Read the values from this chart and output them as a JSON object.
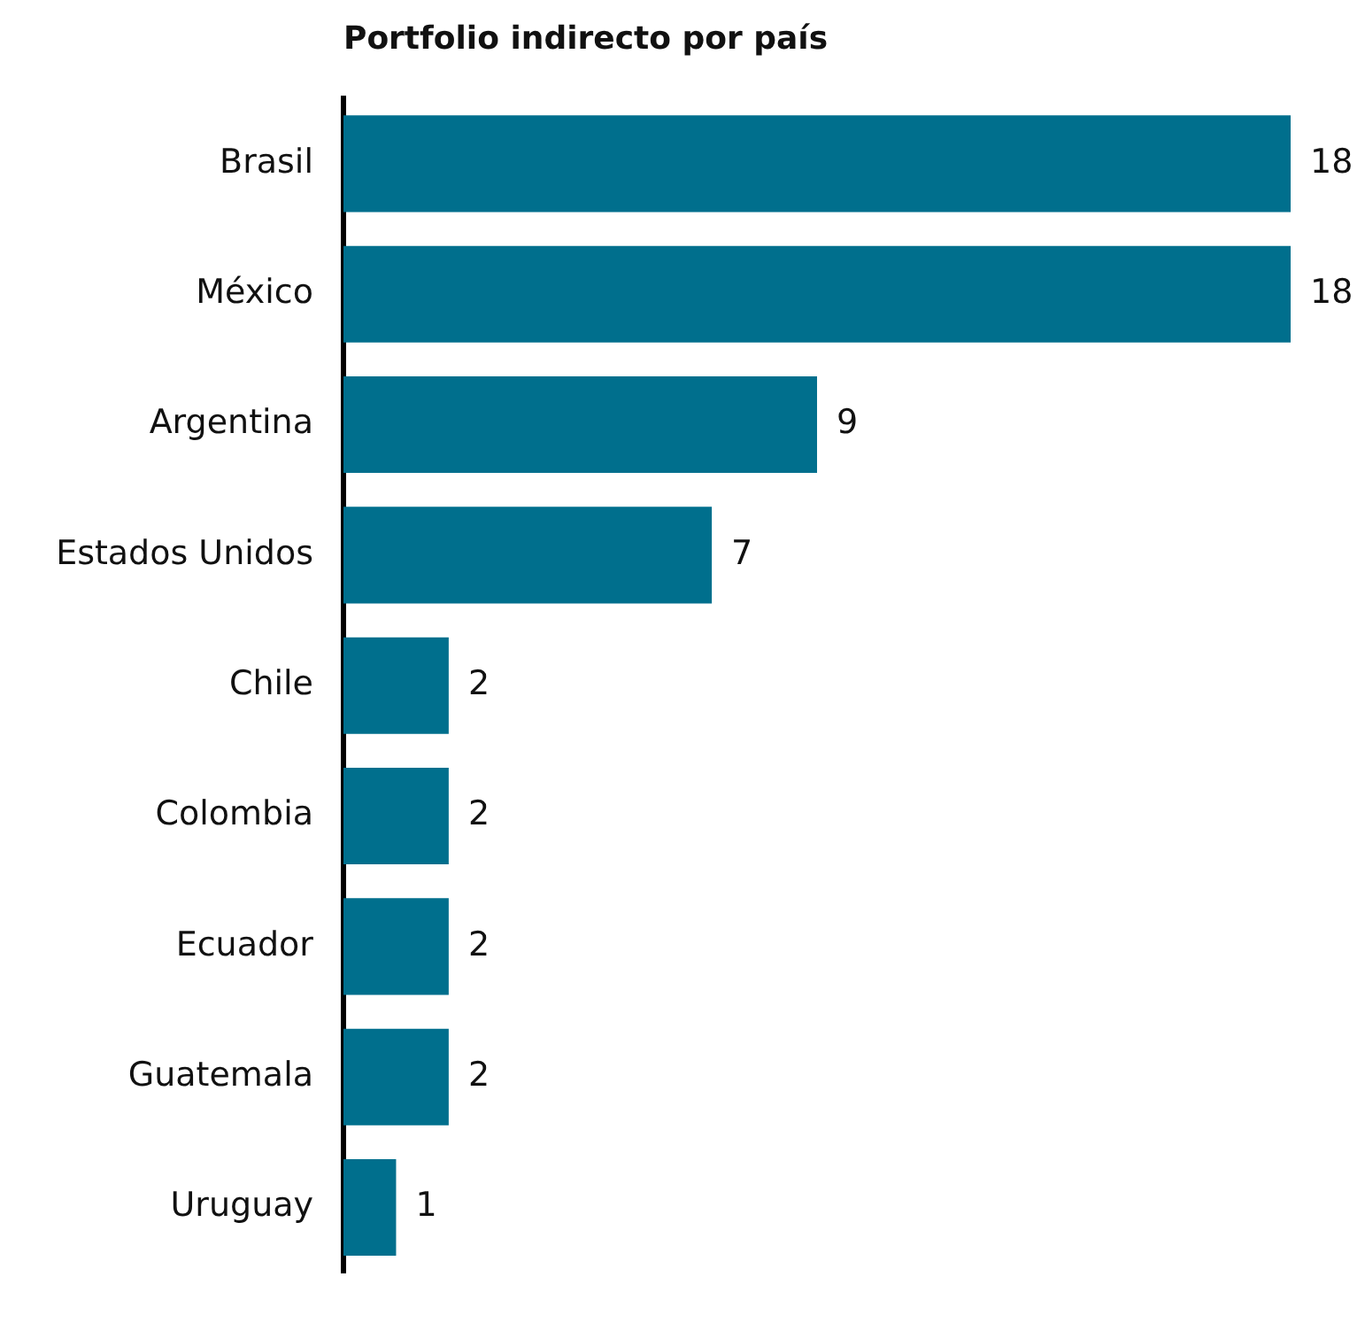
{
  "chart_data": {
    "type": "bar",
    "orientation": "horizontal",
    "title": "Portfolio indirecto por país",
    "categories": [
      "Brasil",
      "México",
      "Argentina",
      "Estados Unidos",
      "Chile",
      "Colombia",
      "Ecuador",
      "Guatemala",
      "Uruguay"
    ],
    "values": [
      18,
      18,
      9,
      7,
      2,
      2,
      2,
      2,
      1
    ],
    "color": "#006f8d",
    "data_labels": true
  }
}
